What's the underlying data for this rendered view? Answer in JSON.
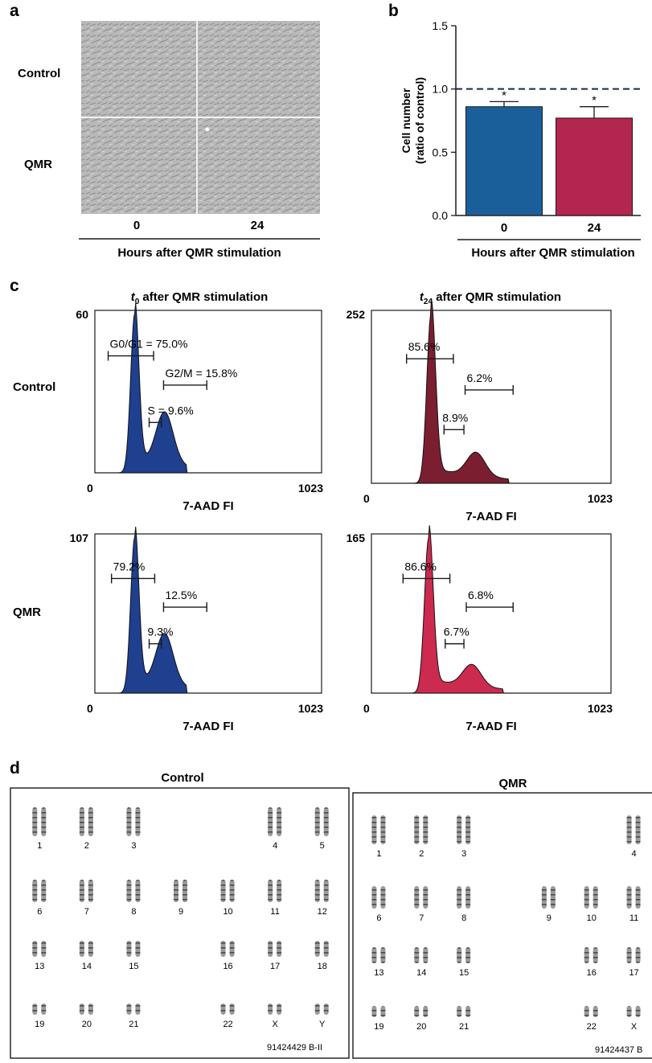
{
  "panels": {
    "a": {
      "letter": "a",
      "row_labels": [
        "Control",
        "QMR"
      ],
      "column_labels": [
        "0",
        "24"
      ],
      "axis_title": "Hours after QMR stimulation"
    },
    "b": {
      "letter": "b"
    },
    "c": {
      "letter": "c",
      "col_titles": [
        {
          "t": "t",
          "sub": "0",
          "rest": " after QMR stimulation"
        },
        {
          "t": "t",
          "sub": "24",
          "rest": " after QMR stimulation"
        }
      ],
      "row_labels": [
        "Control",
        "QMR"
      ]
    },
    "d": {
      "letter": "d",
      "left_title": "Control",
      "right_title": "QMR",
      "left_code": "91424429 B-II",
      "right_code": "91424437 B",
      "left_rows": [
        [
          "1",
          "2",
          "3",
          "4",
          "5"
        ],
        [
          "6",
          "7",
          "8",
          "9",
          "10",
          "11",
          "12"
        ],
        [
          "13",
          "14",
          "15",
          "16",
          "17",
          "18"
        ],
        [
          "19",
          "20",
          "21",
          "22",
          "X",
          "Y"
        ]
      ],
      "right_rows": [
        [
          "1",
          "2",
          "3",
          "4"
        ],
        [
          "6",
          "7",
          "8",
          "9",
          "10",
          "11"
        ],
        [
          "13",
          "14",
          "15",
          "16",
          "17"
        ],
        [
          "19",
          "20",
          "21",
          "22",
          "X"
        ]
      ]
    }
  },
  "chart_data": [
    {
      "type": "bar",
      "panel": "b",
      "categories": [
        "0",
        "24"
      ],
      "values": [
        0.86,
        0.77
      ],
      "errors": [
        0.04,
        0.09
      ],
      "significance": [
        "*",
        "*"
      ],
      "bar_colors": [
        "#1a5f99",
        "#b3264f"
      ],
      "ylabel_lines": [
        "Cell number",
        "(ratio of control)"
      ],
      "xlabel": "Hours after QMR stimulation",
      "yticks": [
        "0.0",
        "0.5",
        "1.0",
        "1.5"
      ],
      "ylim": [
        0,
        1.5
      ],
      "reference_line": 1.0
    },
    {
      "type": "area",
      "panel": "c",
      "title": "Control, t0",
      "color": "#1f3f8f",
      "xlabel": "7-AAD FI",
      "xticks": [
        "0",
        "1023"
      ],
      "ymax_label": "60",
      "xlim": [
        0,
        1023
      ],
      "ylim": [
        0,
        60
      ],
      "peak_x": 180,
      "gates": [
        {
          "label": "G0/G1 = 75.0%",
          "x1": 60,
          "x2": 265
        },
        {
          "label": "G2/M = 15.8%",
          "x1": 310,
          "x2": 505
        },
        {
          "label": "S = 9.6%",
          "x1": 245,
          "x2": 300
        }
      ]
    },
    {
      "type": "area",
      "panel": "c",
      "title": "Control, t24",
      "color": "#7b1f30",
      "xlabel": "7-AAD FI",
      "xticks": [
        "0",
        "1023"
      ],
      "ymax_label": "252",
      "xlim": [
        0,
        1023
      ],
      "ylim": [
        0,
        252
      ],
      "peak_x": 255,
      "gates": [
        {
          "label": "85.6%",
          "x1": 150,
          "x2": 350
        },
        {
          "label": "6.2%",
          "x1": 400,
          "x2": 605
        },
        {
          "label": "8.9%",
          "x1": 310,
          "x2": 395
        }
      ]
    },
    {
      "type": "area",
      "panel": "c",
      "title": "QMR, t0",
      "color": "#1f3f8f",
      "xlabel": "7-AAD FI",
      "xticks": [
        "0",
        "1023"
      ],
      "ymax_label": "107",
      "xlim": [
        0,
        1023
      ],
      "ylim": [
        0,
        107
      ],
      "peak_x": 180,
      "gates": [
        {
          "label": "79.2%",
          "x1": 75,
          "x2": 270
        },
        {
          "label": "12.5%",
          "x1": 310,
          "x2": 505
        },
        {
          "label": "9.3%",
          "x1": 245,
          "x2": 300
        }
      ]
    },
    {
      "type": "area",
      "panel": "c",
      "title": "QMR, t24",
      "color": "#cc2a4e",
      "xlabel": "7-AAD FI",
      "xticks": [
        "0",
        "1023"
      ],
      "ymax_label": "165",
      "xlim": [
        0,
        1023
      ],
      "ylim": [
        0,
        165
      ],
      "peak_x": 245,
      "gates": [
        {
          "label": "86.6%",
          "x1": 135,
          "x2": 335
        },
        {
          "label": "6.8%",
          "x1": 405,
          "x2": 605
        },
        {
          "label": "6.7%",
          "x1": 315,
          "x2": 395
        }
      ]
    }
  ]
}
